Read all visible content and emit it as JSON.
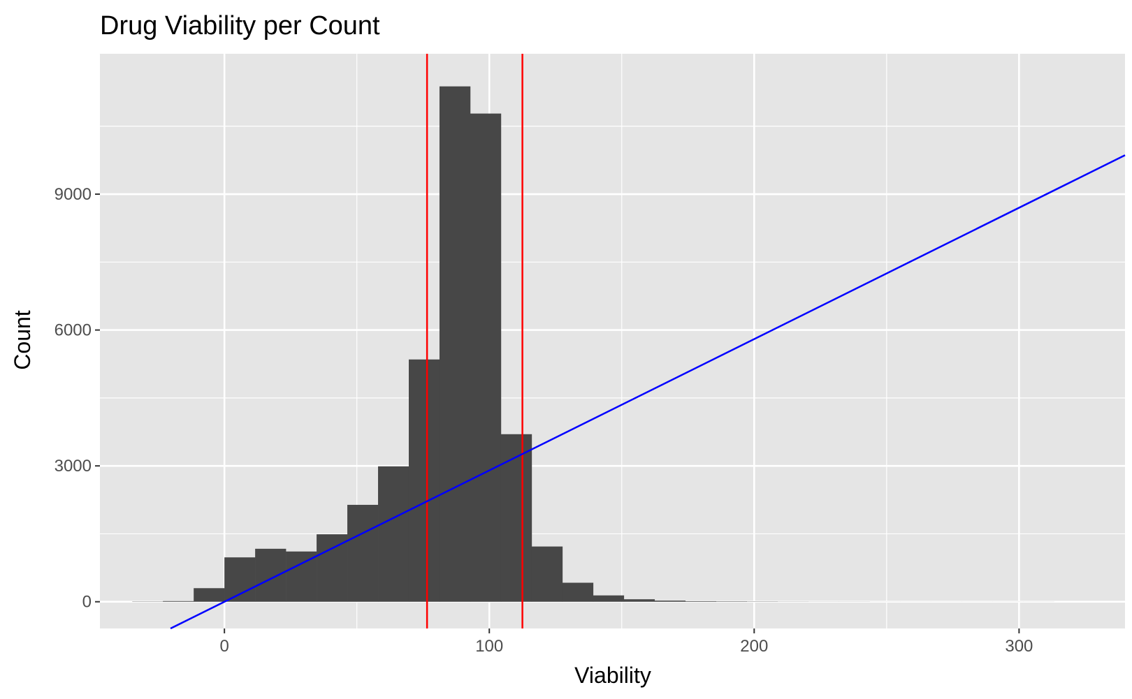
{
  "chart_data": {
    "type": "bar",
    "title": "Drug Viability per Count",
    "xlabel": "Viability",
    "ylabel": "Count",
    "xlim": [
      -47,
      340
    ],
    "ylim": [
      -590,
      12100
    ],
    "x_ticks": [
      0,
      100,
      200,
      300
    ],
    "x_tick_labels": [
      "0",
      "100",
      "200",
      "300"
    ],
    "y_ticks": [
      0,
      3000,
      6000,
      9000
    ],
    "y_tick_labels": [
      "0",
      "3000",
      "6000",
      "9000"
    ],
    "grid": true,
    "panel_background": "#e5e5e5",
    "grid_color": "#ffffff",
    "bar_color": "#474747",
    "bin_width": 11.6,
    "bins": [
      {
        "x": -29.0,
        "count": 5
      },
      {
        "x": -17.4,
        "count": 15
      },
      {
        "x": -5.8,
        "count": 300
      },
      {
        "x": 5.8,
        "count": 980
      },
      {
        "x": 17.4,
        "count": 1170
      },
      {
        "x": 29.0,
        "count": 1110
      },
      {
        "x": 40.6,
        "count": 1490
      },
      {
        "x": 52.2,
        "count": 2140
      },
      {
        "x": 63.8,
        "count": 2990
      },
      {
        "x": 75.4,
        "count": 5350
      },
      {
        "x": 87.0,
        "count": 11380
      },
      {
        "x": 98.6,
        "count": 10780
      },
      {
        "x": 110.2,
        "count": 3700
      },
      {
        "x": 121.8,
        "count": 1220
      },
      {
        "x": 133.4,
        "count": 420
      },
      {
        "x": 145.0,
        "count": 140
      },
      {
        "x": 156.6,
        "count": 55
      },
      {
        "x": 168.2,
        "count": 25
      },
      {
        "x": 179.8,
        "count": 12
      },
      {
        "x": 191.4,
        "count": 8
      },
      {
        "x": 203.0,
        "count": 5
      },
      {
        "x": 214.6,
        "count": 3
      },
      {
        "x": 226.2,
        "count": 2
      },
      {
        "x": 237.8,
        "count": 2
      },
      {
        "x": 249.4,
        "count": 1
      },
      {
        "x": 261.0,
        "count": 1
      },
      {
        "x": 272.6,
        "count": 1
      },
      {
        "x": 284.2,
        "count": 1
      },
      {
        "x": 295.8,
        "count": 1
      },
      {
        "x": 307.4,
        "count": 1
      }
    ],
    "vlines": [
      {
        "x": 76.5,
        "color": "#ff0000"
      },
      {
        "x": 112.5,
        "color": "#ff0000"
      }
    ],
    "abline": {
      "intercept": 0,
      "slope": 29,
      "color": "#0000ff"
    }
  }
}
